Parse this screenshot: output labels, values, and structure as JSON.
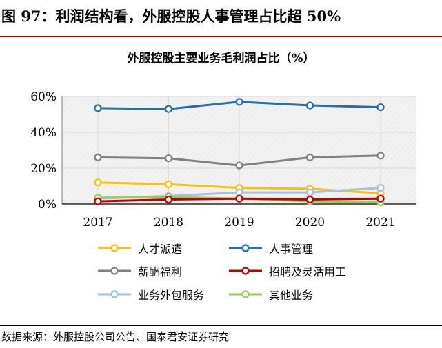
{
  "figure": {
    "title": "图 97：利润结构看，外服控股人事管理占比超 50%",
    "source": "数据来源：外服控股公司公告、国泰君安证券研究"
  },
  "colors": {
    "title_bar": "#9e0000",
    "grid": "#d9d9d9",
    "plot_bg": "#f2f2f2"
  },
  "chart_data": {
    "type": "line",
    "title": "外服控股主要业务毛利润占比（%）",
    "xlabel": "",
    "ylabel": "",
    "x": [
      "2017",
      "2018",
      "2019",
      "2020",
      "2021"
    ],
    "ylim": [
      0,
      60
    ],
    "yticks": [
      0,
      20,
      40,
      60
    ],
    "ytick_labels": [
      "0%",
      "20%",
      "40%",
      "60%"
    ],
    "grid": true,
    "legend_position": "bottom",
    "series": [
      {
        "name": "人才派遣",
        "color": "#ffc000",
        "values": [
          12,
          11,
          9,
          8.5,
          6
        ]
      },
      {
        "name": "人事管理",
        "color": "#1f6fb5",
        "values": [
          53.5,
          53,
          57,
          55,
          54
        ]
      },
      {
        "name": "薪酬福利",
        "color": "#808080",
        "values": [
          26,
          25.5,
          21.5,
          26,
          27
        ]
      },
      {
        "name": "招聘及灵活用工",
        "color": "#c00000",
        "values": [
          1.5,
          2.5,
          3,
          2.5,
          3
        ]
      },
      {
        "name": "业务外包服务",
        "color": "#9dc3e6",
        "values": [
          3,
          4.5,
          6.5,
          6.5,
          9
        ]
      },
      {
        "name": "其他业务",
        "color": "#92d050",
        "values": [
          3.5,
          4,
          3,
          1.5,
          1
        ]
      }
    ]
  }
}
